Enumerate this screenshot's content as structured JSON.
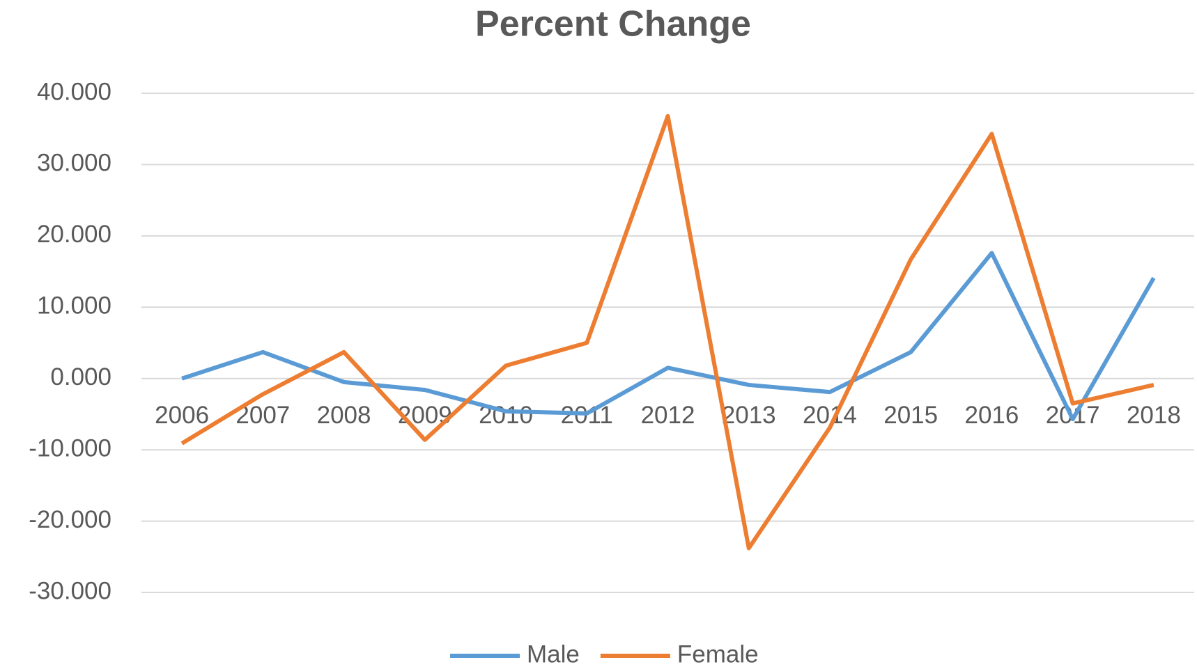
{
  "chart_data": {
    "type": "line",
    "title": "Percent Change",
    "categories": [
      "2006",
      "2007",
      "2008",
      "2009",
      "2010",
      "2011",
      "2012",
      "2013",
      "2014",
      "2015",
      "2016",
      "2017",
      "2018"
    ],
    "series": [
      {
        "name": "Male",
        "color": "#5b9bd5",
        "values": [
          0,
          3.7,
          -0.5,
          -1.6,
          -4.6,
          -4.9,
          1.5,
          -0.9,
          -1.9,
          3.7,
          17.6,
          -5.7,
          14.1
        ]
      },
      {
        "name": "Female",
        "color": "#ed7d31",
        "values": [
          -9.1,
          -2.2,
          3.7,
          -8.6,
          1.8,
          5.0,
          36.8,
          -23.8,
          -6.9,
          16.7,
          34.3,
          -3.5,
          -0.9
        ]
      }
    ],
    "ylim": [
      -30,
      40
    ],
    "yticks": [
      {
        "value": -30,
        "label": "-30.000"
      },
      {
        "value": -20,
        "label": "-20.000"
      },
      {
        "value": -10,
        "label": "-10.000"
      },
      {
        "value": 0,
        "label": "0.000"
      },
      {
        "value": 10,
        "label": "10.000"
      },
      {
        "value": 20,
        "label": "20.000"
      },
      {
        "value": 30,
        "label": "30.000"
      },
      {
        "value": 40,
        "label": "40.000"
      }
    ],
    "grid": true,
    "legend": "bottom"
  }
}
